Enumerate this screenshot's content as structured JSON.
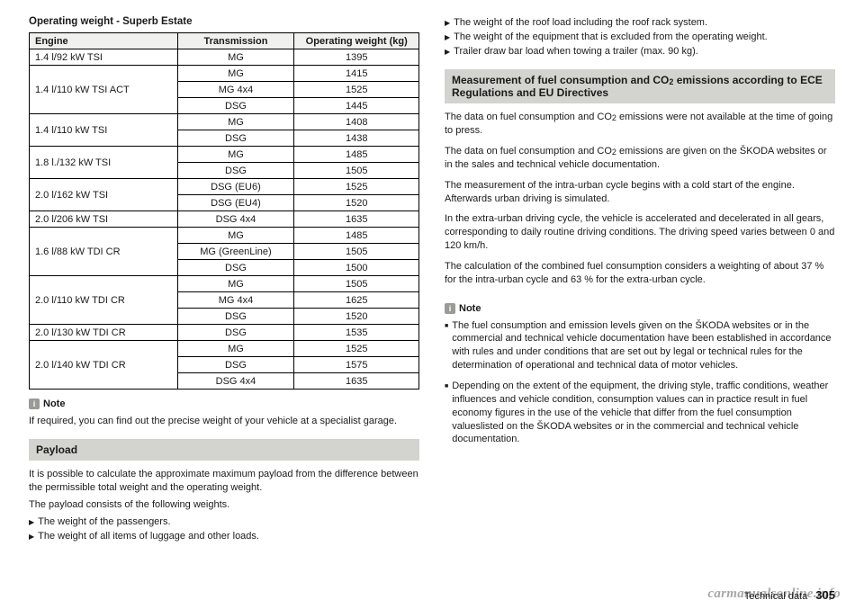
{
  "tableTitle": "Operating weight - Superb Estate",
  "headers": {
    "engine": "Engine",
    "trans": "Transmission",
    "weight": "Operating weight (kg)"
  },
  "rows": [
    {
      "engine": "1.4 l/92 kW TSI",
      "span": 1,
      "cells": [
        [
          "MG",
          "1395"
        ]
      ]
    },
    {
      "engine": "1.4 l/110 kW TSI ACT",
      "span": 3,
      "cells": [
        [
          "MG",
          "1415"
        ],
        [
          "MG 4x4",
          "1525"
        ],
        [
          "DSG",
          "1445"
        ]
      ]
    },
    {
      "engine": "1.4 l/110 kW TSI",
      "span": 2,
      "cells": [
        [
          "MG",
          "1408"
        ],
        [
          "DSG",
          "1438"
        ]
      ]
    },
    {
      "engine": "1.8 l./132 kW TSI",
      "span": 2,
      "cells": [
        [
          "MG",
          "1485"
        ],
        [
          "DSG",
          "1505"
        ]
      ]
    },
    {
      "engine": "2.0 l/162 kW TSI",
      "span": 2,
      "cells": [
        [
          "DSG (EU6)",
          "1525"
        ],
        [
          "DSG (EU4)",
          "1520"
        ]
      ]
    },
    {
      "engine": "2.0 l/206 kW TSI",
      "span": 1,
      "cells": [
        [
          "DSG 4x4",
          "1635"
        ]
      ]
    },
    {
      "engine": "1.6 l/88 kW TDI CR",
      "span": 3,
      "cells": [
        [
          "MG",
          "1485"
        ],
        [
          "MG (GreenLine)",
          "1505"
        ],
        [
          "DSG",
          "1500"
        ]
      ]
    },
    {
      "engine": "2.0 l/110 kW TDI CR",
      "span": 3,
      "cells": [
        [
          "MG",
          "1505"
        ],
        [
          "MG 4x4",
          "1625"
        ],
        [
          "DSG",
          "1520"
        ]
      ]
    },
    {
      "engine": "2.0 l/130 kW TDI CR",
      "span": 1,
      "cells": [
        [
          "DSG",
          "1535"
        ]
      ]
    },
    {
      "engine": "2.0 l/140 kW TDI CR",
      "span": 3,
      "cells": [
        [
          "MG",
          "1525"
        ],
        [
          "DSG",
          "1575"
        ],
        [
          "DSG 4x4",
          "1635"
        ]
      ]
    }
  ],
  "noteLabel": "Note",
  "noteText": "If required, you can find out the precise weight of your vehicle at a specialist garage.",
  "payloadHeading": "Payload",
  "payloadIntro1": "It is possible to calculate the approximate maximum payload from the difference between the permissible total weight and the operating weight.",
  "payloadIntro2": "The payload consists of the following weights.",
  "payloadBulletsLeft": [
    "The weight of the passengers.",
    "The weight of all items of luggage and other loads."
  ],
  "payloadBulletsRight": [
    "The weight of the roof load including the roof rack system.",
    "The weight of the equipment that is excluded from the operating weight.",
    "Trailer draw bar load when towing a trailer (max. 90 kg)."
  ],
  "fuelHeadingA": "Measurement of fuel consumption and CO",
  "fuelHeadingB": " emissions according to ECE Regulations and EU Directives",
  "fuelParas": [
    "The data on fuel consumption and CO₂ emissions were not available at the time of going to press.",
    "The data on fuel consumption and CO₂ emissions are given on the ŠKODA websites or in the sales and technical vehicle documentation.",
    "The measurement of the intra-urban cycle begins with a cold start of the engine. Afterwards urban driving is simulated.",
    "In the extra-urban driving cycle, the vehicle is accelerated and decelerated in all gears, corresponding to daily routine driving conditions. The driving speed varies between 0 and 120 km/h.",
    "The calculation of the combined fuel consumption considers a weighting of about 37 % for the intra-urban cycle and 63 % for the extra-urban cycle."
  ],
  "noteBullets": [
    "The fuel consumption and emission levels given on the ŠKODA websites or in the commercial and technical vehicle documentation have been established in accordance with rules and under conditions that are set out by legal or technical rules for the determination of operational and technical data of motor vehicles.",
    "Depending on the extent of the equipment, the driving style, traffic conditions, weather influences and vehicle condition, consumption values can in practice result in fuel economy figures in the use of the vehicle that differ from the fuel consumption valueslisted on the ŠKODA websites or in the commercial and technical vehicle documentation."
  ],
  "footerLabel": "Technical data",
  "footerPage": "305",
  "watermark": "carmanualsonline.info"
}
